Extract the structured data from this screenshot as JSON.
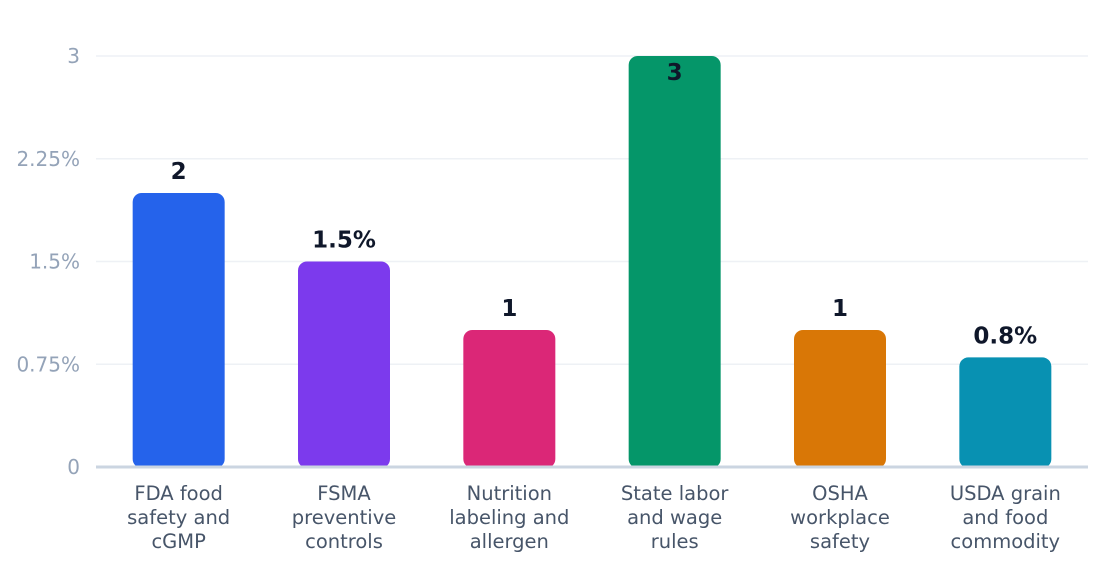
{
  "chart_data": {
    "type": "bar",
    "title": "",
    "xlabel": "",
    "ylabel": "",
    "ylim": [
      0,
      3
    ],
    "grid": true,
    "legend": "none",
    "y_ticks": [
      "0",
      "0.75%",
      "1.5%",
      "2.25%",
      "3"
    ],
    "categories": [
      [
        "FDA food",
        "safety and",
        "cGMP"
      ],
      [
        "FSMA",
        "preventive",
        "controls"
      ],
      [
        "Nutrition",
        "labeling and",
        "allergen"
      ],
      [
        "State labor",
        "and wage",
        "rules"
      ],
      [
        "OSHA",
        "workplace",
        "safety"
      ],
      [
        "USDA grain",
        "and food",
        "commodity"
      ]
    ],
    "values": [
      2,
      1.5,
      1,
      3,
      1,
      0.8
    ],
    "data_labels": [
      "2",
      "1.5%",
      "1",
      "3",
      "1",
      "0.8%"
    ],
    "colors": [
      "#2563eb",
      "#7c3aed",
      "#db2777",
      "#059669",
      "#d97706",
      "#0891b2"
    ]
  }
}
